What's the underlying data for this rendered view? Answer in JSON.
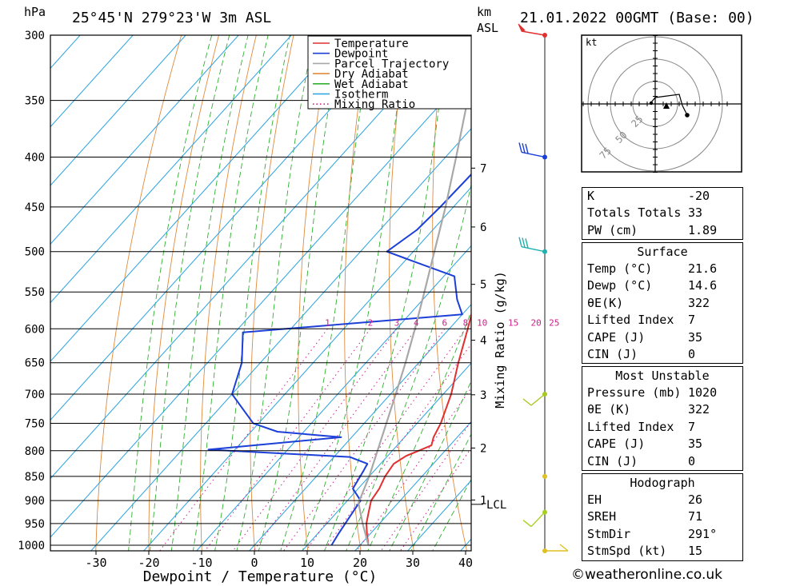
{
  "header": {
    "pressure_unit": "hPa",
    "location": "25°45'N 279°23'W 3m ASL",
    "height_unit": "km",
    "height_unit2": "ASL",
    "date": "21.01.2022 00GMT (Base: 00)"
  },
  "footer": "©weatheronline.co.uk",
  "chart_data": {
    "type": "line",
    "xlabel": "Dewpoint / Temperature (°C)",
    "ylabel_right": "Mixing Ratio (g/kg)",
    "x_ticks": [
      -30,
      -20,
      -10,
      0,
      10,
      20,
      30,
      40
    ],
    "pressure_levels": [
      300,
      350,
      400,
      450,
      500,
      550,
      600,
      650,
      700,
      750,
      800,
      850,
      900,
      950,
      1000
    ],
    "height_ticks_km": [
      1,
      2,
      3,
      4,
      5,
      6,
      7
    ],
    "lcl_label": "LCL",
    "mixing_ratio_labels": [
      "1",
      "2",
      "3",
      "4",
      "6",
      "8",
      "10",
      "15",
      "20",
      "25"
    ],
    "legend": [
      "Temperature",
      "Dewpoint",
      "Parcel Trajectory",
      "Dry Adiabat",
      "Wet Adiabat",
      "Isotherm",
      "Mixing Ratio"
    ],
    "colors": {
      "temperature": "#e03030",
      "dewpoint": "#1c3fd8",
      "parcel": "#a8a8a8",
      "dry_adiabat": "#e08a3c",
      "wet_adiabat": "#2fb02f",
      "isotherm": "#29a2e0",
      "mixing_ratio": "#d0208a"
    },
    "series": [
      {
        "name": "Temperature",
        "points": [
          {
            "p": 1000,
            "t": 21.6
          },
          {
            "p": 975,
            "t": 19.5
          },
          {
            "p": 950,
            "t": 17.5
          },
          {
            "p": 925,
            "t": 16.0
          },
          {
            "p": 900,
            "t": 14.5
          },
          {
            "p": 875,
            "t": 14.0
          },
          {
            "p": 850,
            "t": 13.0
          },
          {
            "p": 825,
            "t": 12.5
          },
          {
            "p": 810,
            "t": 13.5
          },
          {
            "p": 800,
            "t": 15.0
          },
          {
            "p": 790,
            "t": 16.5
          },
          {
            "p": 775,
            "t": 15.5
          },
          {
            "p": 750,
            "t": 14.5
          },
          {
            "p": 700,
            "t": 11.5
          },
          {
            "p": 650,
            "t": 7.5
          },
          {
            "p": 600,
            "t": 3.5
          },
          {
            "p": 550,
            "t": -1.0
          },
          {
            "p": 525,
            "t": -3.5
          },
          {
            "p": 500,
            "t": -5.0
          },
          {
            "p": 475,
            "t": -8.5
          },
          {
            "p": 450,
            "t": -12.5
          },
          {
            "p": 400,
            "t": -20.5
          },
          {
            "p": 350,
            "t": -29.5
          },
          {
            "p": 300,
            "t": -39.5
          }
        ]
      },
      {
        "name": "Dewpoint",
        "points": [
          {
            "p": 1000,
            "t": 14.6
          },
          {
            "p": 975,
            "t": 14.0
          },
          {
            "p": 950,
            "t": 13.5
          },
          {
            "p": 925,
            "t": 13.0
          },
          {
            "p": 900,
            "t": 12.5
          },
          {
            "p": 875,
            "t": 9.0
          },
          {
            "p": 840,
            "t": 8.0
          },
          {
            "p": 825,
            "t": 7.5
          },
          {
            "p": 812,
            "t": 3.0
          },
          {
            "p": 798,
            "t": -25.0
          },
          {
            "p": 775,
            "t": -2.0
          },
          {
            "p": 765,
            "t": -15.0
          },
          {
            "p": 750,
            "t": -21.0
          },
          {
            "p": 700,
            "t": -30.0
          },
          {
            "p": 650,
            "t": -33.5
          },
          {
            "p": 605,
            "t": -38.5
          },
          {
            "p": 580,
            "t": 0.0
          },
          {
            "p": 560,
            "t": -3.5
          },
          {
            "p": 530,
            "t": -8.0
          },
          {
            "p": 500,
            "t": -25.0
          },
          {
            "p": 475,
            "t": -23.0
          },
          {
            "p": 450,
            "t": -22.5
          },
          {
            "p": 400,
            "t": -22.0
          },
          {
            "p": 350,
            "t": -29.5
          },
          {
            "p": 300,
            "t": -38.5
          }
        ]
      },
      {
        "name": "Parcel Trajectory",
        "points": [
          {
            "p": 1000,
            "t": 21.6
          },
          {
            "p": 950,
            "t": 16.8
          },
          {
            "p": 905,
            "t": 12.5
          },
          {
            "p": 850,
            "t": 10.0
          },
          {
            "p": 800,
            "t": 7.2
          },
          {
            "p": 750,
            "t": 4.2
          },
          {
            "p": 700,
            "t": 1.0
          },
          {
            "p": 650,
            "t": -2.5
          },
          {
            "p": 600,
            "t": -6.5
          },
          {
            "p": 550,
            "t": -11.0
          },
          {
            "p": 500,
            "t": -16.0
          },
          {
            "p": 450,
            "t": -21.5
          },
          {
            "p": 400,
            "t": -28.0
          },
          {
            "p": 350,
            "t": -35.5
          },
          {
            "p": 300,
            "t": -44.0
          }
        ]
      }
    ],
    "wind_barbs": [
      {
        "p": 300,
        "type": "pennant"
      },
      {
        "p": 400,
        "type": "barb3"
      },
      {
        "p": 500,
        "type": "barb3"
      },
      {
        "p": 700,
        "type": "barb1"
      },
      {
        "p": 850,
        "type": "calm"
      },
      {
        "p": 925,
        "type": "barb1"
      },
      {
        "p": 1000,
        "type": "barb1"
      }
    ]
  },
  "hodograph": {
    "unit_label": "kt",
    "ring_labels": [
      "25",
      "50",
      "75"
    ]
  },
  "indices": {
    "rows": [
      {
        "label": "K",
        "value": "-20"
      },
      {
        "label": "Totals Totals",
        "value": "33"
      },
      {
        "label": "PW (cm)",
        "value": "1.89"
      }
    ]
  },
  "surface": {
    "title": "Surface",
    "rows": [
      {
        "label": "Temp (°C)",
        "value": "21.6"
      },
      {
        "label": "Dewp (°C)",
        "value": "14.6"
      },
      {
        "label": "θE(K)",
        "value": "322"
      },
      {
        "label": "Lifted Index",
        "value": "7"
      },
      {
        "label": "CAPE (J)",
        "value": "35"
      },
      {
        "label": "CIN (J)",
        "value": "0"
      }
    ]
  },
  "most_unstable": {
    "title": "Most Unstable",
    "rows": [
      {
        "label": "Pressure (mb)",
        "value": "1020"
      },
      {
        "label": "θE (K)",
        "value": "322"
      },
      {
        "label": "Lifted Index",
        "value": "7"
      },
      {
        "label": "CAPE (J)",
        "value": "35"
      },
      {
        "label": "CIN (J)",
        "value": "0"
      }
    ]
  },
  "hodograph_table": {
    "title": "Hodograph",
    "rows": [
      {
        "label": "EH",
        "value": "26"
      },
      {
        "label": "SREH",
        "value": "71"
      },
      {
        "label": "StmDir",
        "value": "291°"
      },
      {
        "label": "StmSpd (kt)",
        "value": "15"
      }
    ]
  }
}
